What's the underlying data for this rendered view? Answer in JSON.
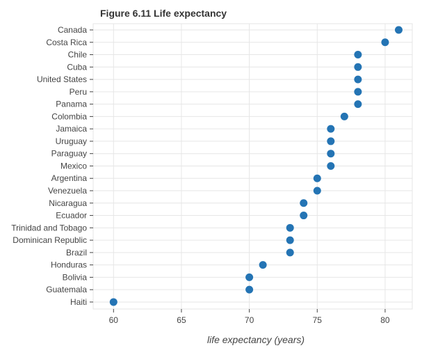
{
  "chart_data": {
    "type": "scatter",
    "title": "Figure 6.11 Life expectancy",
    "xlabel": "life expectancy (years)",
    "ylabel": "",
    "xlim": [
      58.5,
      82
    ],
    "xticks": [
      60,
      65,
      70,
      75,
      80
    ],
    "grid": true,
    "series": [
      {
        "name": "life expectancy",
        "color": "#2474b4",
        "categories": [
          "Canada",
          "Costa Rica",
          "Chile",
          "Cuba",
          "United States",
          "Peru",
          "Panama",
          "Colombia",
          "Jamaica",
          "Uruguay",
          "Paraguay",
          "Mexico",
          "Argentina",
          "Venezuela",
          "Nicaragua",
          "Ecuador",
          "Trinidad and Tobago",
          "Dominican Republic",
          "Brazil",
          "Honduras",
          "Bolivia",
          "Guatemala",
          "Haiti"
        ],
        "values": [
          81,
          80,
          78,
          78,
          78,
          78,
          78,
          77,
          76,
          76,
          76,
          76,
          75,
          75,
          74,
          74,
          73,
          73,
          73,
          71,
          70,
          70,
          60
        ]
      }
    ]
  }
}
